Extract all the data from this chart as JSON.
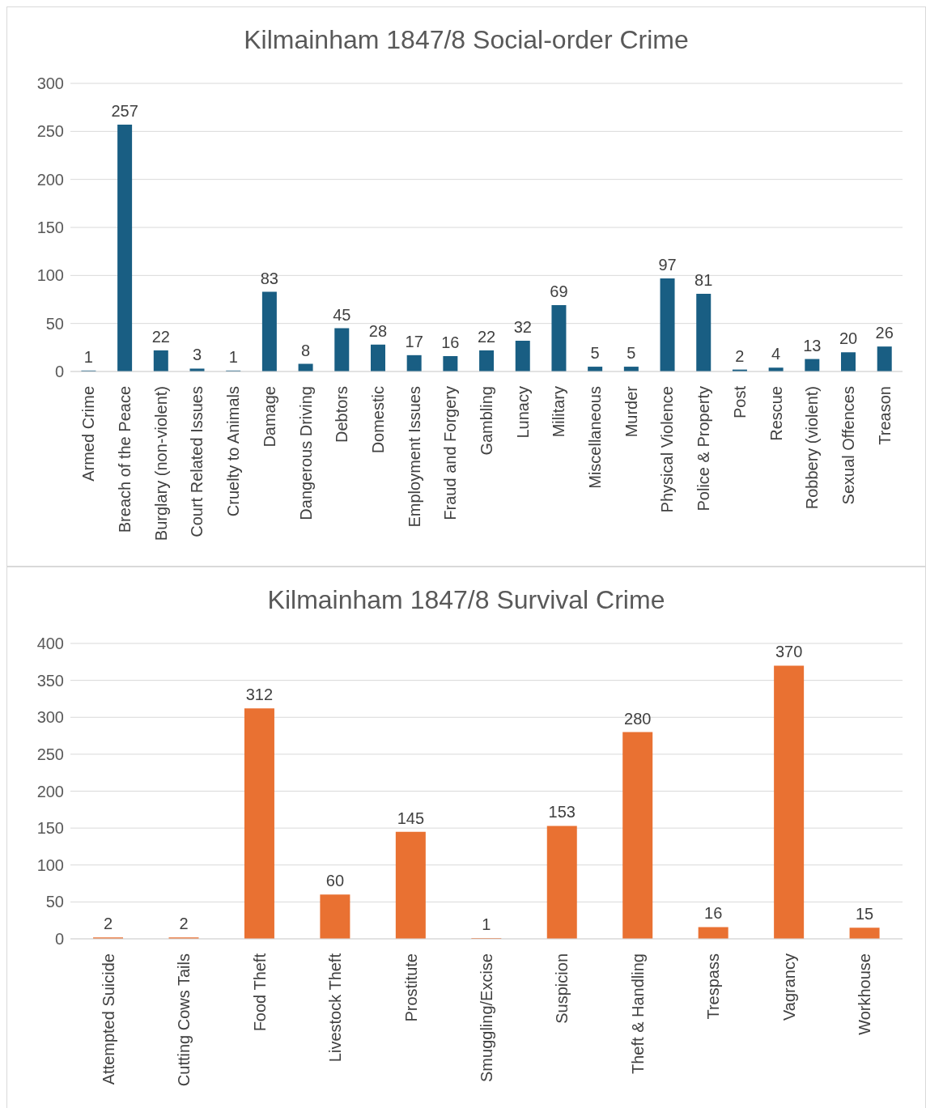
{
  "chart_data": [
    {
      "type": "bar",
      "title": "Kilmainham 1847/8 Social-order Crime",
      "categories": [
        "Armed Crime",
        "Breach of the Peace",
        "Burglary (non-violent)",
        "Court Related Issues",
        "Cruelty to Animals",
        "Damage",
        "Dangerous Driving",
        "Debtors",
        "Domestic",
        "Employment Issues",
        "Fraud and Forgery",
        "Gambling",
        "Lunacy",
        "Military",
        "Miscellaneous",
        "Murder",
        "Physical Violence",
        "Police & Property",
        "Post",
        "Rescue",
        "Robbery (violent)",
        "Sexual Offences",
        "Treason"
      ],
      "values": [
        1,
        257,
        22,
        3,
        1,
        83,
        8,
        45,
        28,
        17,
        16,
        22,
        32,
        69,
        5,
        5,
        97,
        81,
        2,
        4,
        13,
        20,
        26
      ],
      "color": "#195e83",
      "ylim": [
        0,
        300
      ],
      "yticks": [
        0,
        50,
        100,
        150,
        200,
        250,
        300
      ],
      "grid": "y",
      "data_labels": true
    },
    {
      "type": "bar",
      "title": "Kilmainham 1847/8 Survival Crime",
      "categories": [
        "Attempted Suicide",
        "Cutting Cows Tails",
        "Food Theft",
        "Livestock Theft",
        "Prostitute",
        "Smuggling/Excise",
        "Suspicion",
        "Theft & Handling",
        "Trespass",
        "Vagrancy",
        "Workhouse"
      ],
      "values": [
        2,
        2,
        312,
        60,
        145,
        1,
        153,
        280,
        16,
        370,
        15
      ],
      "color": "#e97132",
      "ylim": [
        0,
        400
      ],
      "yticks": [
        0,
        50,
        100,
        150,
        200,
        250,
        300,
        350,
        400
      ],
      "grid": "y",
      "data_labels": true
    }
  ]
}
